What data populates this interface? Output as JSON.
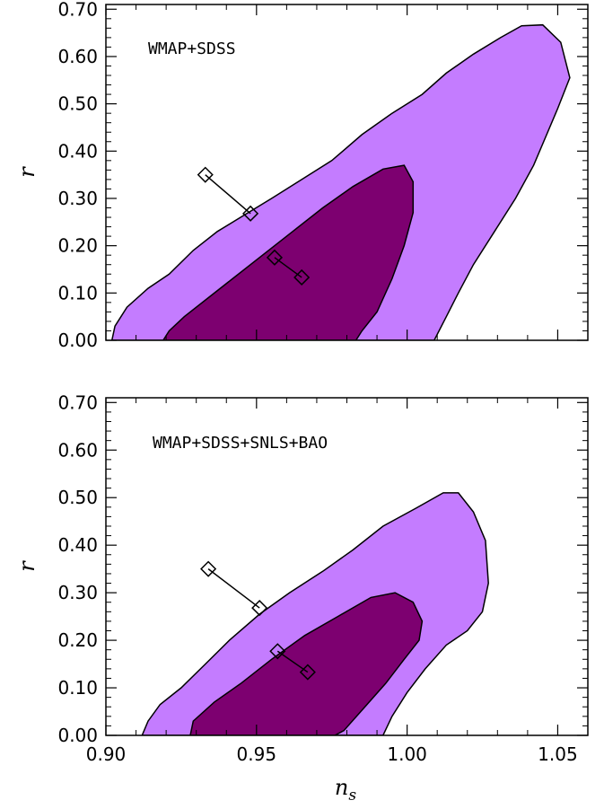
{
  "chart_data": [
    {
      "type": "contour",
      "annotation": "WMAP+SDSS",
      "xlabel": "",
      "ylabel": "r",
      "xlim": [
        0.9,
        1.06
      ],
      "ylim": [
        0.0,
        0.71
      ],
      "yticks": [
        "0.00",
        "0.10",
        "0.20",
        "0.30",
        "0.40",
        "0.50",
        "0.60",
        "0.70"
      ],
      "xticks": [],
      "colors": {
        "outer": "#c47cff",
        "inner": "#7d0070",
        "edge": "#000000"
      },
      "regions": {
        "outer": [
          [
            0.902,
            0.0
          ],
          [
            0.903,
            0.03
          ],
          [
            0.907,
            0.07
          ],
          [
            0.914,
            0.11
          ],
          [
            0.921,
            0.14
          ],
          [
            0.929,
            0.19
          ],
          [
            0.937,
            0.23
          ],
          [
            0.946,
            0.265
          ],
          [
            0.955,
            0.3
          ],
          [
            0.965,
            0.34
          ],
          [
            0.975,
            0.38
          ],
          [
            0.985,
            0.435
          ],
          [
            0.995,
            0.48
          ],
          [
            1.005,
            0.52
          ],
          [
            1.013,
            0.565
          ],
          [
            1.022,
            0.605
          ],
          [
            1.031,
            0.64
          ],
          [
            1.038,
            0.665
          ],
          [
            1.045,
            0.667
          ],
          [
            1.051,
            0.63
          ],
          [
            1.054,
            0.555
          ],
          [
            1.05,
            0.49
          ],
          [
            1.046,
            0.43
          ],
          [
            1.042,
            0.37
          ],
          [
            1.036,
            0.3
          ],
          [
            1.029,
            0.23
          ],
          [
            1.022,
            0.16
          ],
          [
            1.017,
            0.1
          ],
          [
            1.013,
            0.05
          ],
          [
            1.009,
            0.0
          ]
        ],
        "inner": [
          [
            0.919,
            0.0
          ],
          [
            0.921,
            0.02
          ],
          [
            0.926,
            0.05
          ],
          [
            0.934,
            0.09
          ],
          [
            0.942,
            0.13
          ],
          [
            0.952,
            0.18
          ],
          [
            0.962,
            0.23
          ],
          [
            0.972,
            0.28
          ],
          [
            0.982,
            0.325
          ],
          [
            0.992,
            0.362
          ],
          [
            0.999,
            0.37
          ],
          [
            1.002,
            0.335
          ],
          [
            1.002,
            0.27
          ],
          [
            0.999,
            0.2
          ],
          [
            0.995,
            0.13
          ],
          [
            0.99,
            0.06
          ],
          [
            0.985,
            0.02
          ],
          [
            0.983,
            0.0
          ]
        ]
      },
      "markers": [
        {
          "from": [
            0.933,
            0.35
          ],
          "to": [
            0.948,
            0.268
          ]
        },
        {
          "from": [
            0.956,
            0.175
          ],
          "to": [
            0.965,
            0.133
          ]
        }
      ]
    },
    {
      "type": "contour",
      "annotation": "WMAP+SDSS+SNLS+BAO",
      "xlabel": "n_s",
      "ylabel": "r",
      "xlim": [
        0.9,
        1.06
      ],
      "ylim": [
        0.0,
        0.71
      ],
      "yticks": [
        "0.00",
        "0.10",
        "0.20",
        "0.30",
        "0.40",
        "0.50",
        "0.60",
        "0.70"
      ],
      "xticks": [
        "0.90",
        "0.95",
        "1.00",
        "1.05"
      ],
      "colors": {
        "outer": "#c47cff",
        "inner": "#7d0070",
        "edge": "#000000"
      },
      "regions": {
        "outer": [
          [
            0.912,
            0.0
          ],
          [
            0.914,
            0.03
          ],
          [
            0.918,
            0.065
          ],
          [
            0.925,
            0.1
          ],
          [
            0.933,
            0.15
          ],
          [
            0.941,
            0.2
          ],
          [
            0.951,
            0.255
          ],
          [
            0.961,
            0.3
          ],
          [
            0.972,
            0.345
          ],
          [
            0.982,
            0.39
          ],
          [
            0.992,
            0.44
          ],
          [
            1.003,
            0.478
          ],
          [
            1.012,
            0.51
          ],
          [
            1.017,
            0.51
          ],
          [
            1.022,
            0.47
          ],
          [
            1.026,
            0.41
          ],
          [
            1.027,
            0.32
          ],
          [
            1.025,
            0.26
          ],
          [
            1.02,
            0.22
          ],
          [
            1.013,
            0.19
          ],
          [
            1.006,
            0.14
          ],
          [
            1.0,
            0.09
          ],
          [
            0.995,
            0.04
          ],
          [
            0.992,
            0.0
          ]
        ],
        "inner": [
          [
            0.928,
            0.0
          ],
          [
            0.929,
            0.03
          ],
          [
            0.936,
            0.07
          ],
          [
            0.945,
            0.11
          ],
          [
            0.955,
            0.16
          ],
          [
            0.966,
            0.21
          ],
          [
            0.977,
            0.25
          ],
          [
            0.988,
            0.29
          ],
          [
            0.996,
            0.3
          ],
          [
            1.002,
            0.28
          ],
          [
            1.005,
            0.24
          ],
          [
            1.004,
            0.2
          ],
          [
            0.999,
            0.16
          ],
          [
            0.993,
            0.11
          ],
          [
            0.986,
            0.06
          ],
          [
            0.979,
            0.01
          ],
          [
            0.976,
            0.0
          ]
        ]
      },
      "markers": [
        {
          "from": [
            0.934,
            0.35
          ],
          "to": [
            0.951,
            0.268
          ]
        },
        {
          "from": [
            0.957,
            0.177
          ],
          "to": [
            0.967,
            0.133
          ]
        }
      ]
    }
  ]
}
